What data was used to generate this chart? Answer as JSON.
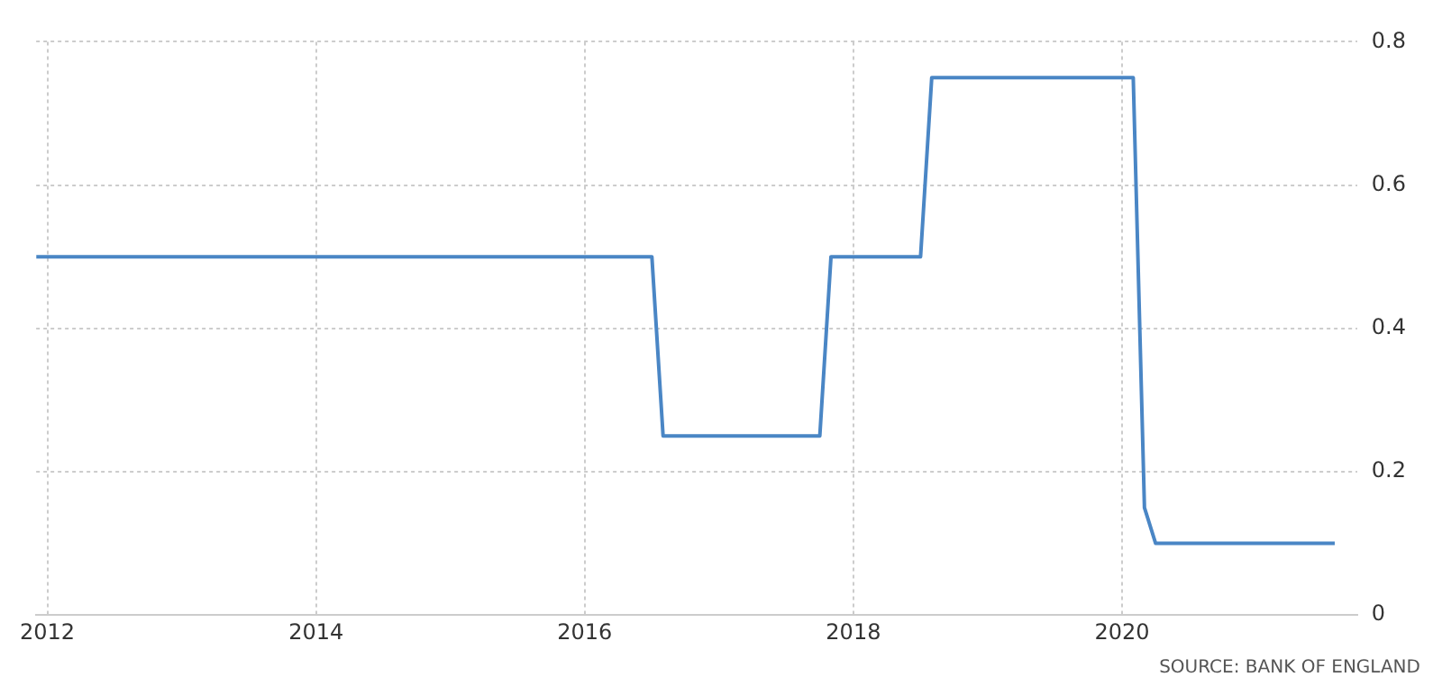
{
  "chart_data": {
    "type": "line",
    "x": [
      "2011-12",
      "2016-07",
      "2016-08",
      "2017-10",
      "2017-11",
      "2018-07",
      "2018-08",
      "2020-02",
      "2020-03",
      "2020-04",
      "2021-08"
    ],
    "series": [
      {
        "color": "#4a86c5",
        "values": [
          0.5,
          0.5,
          0.25,
          0.25,
          0.5,
          0.5,
          0.75,
          0.75,
          0.15,
          0.1,
          0.1
        ]
      }
    ],
    "xlim": [
      "2011-12",
      "2021-10"
    ],
    "xticks": [
      "2012",
      "2014",
      "2016",
      "2018",
      "2020"
    ],
    "ylim": [
      0,
      0.8
    ],
    "yticks": [
      0,
      0.2,
      0.4,
      0.6,
      0.8
    ],
    "grid": true,
    "legend": false,
    "marker": "none",
    "line_style": "solid",
    "annotations": [
      "SOURCE: BANK OF ENGLAND"
    ]
  }
}
